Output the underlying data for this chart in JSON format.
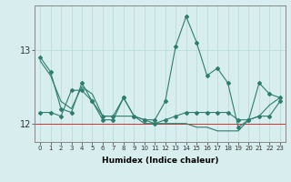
{
  "xlabel": "Humidex (Indice chaleur)",
  "x_values": [
    0,
    1,
    2,
    3,
    4,
    5,
    6,
    7,
    8,
    9,
    10,
    11,
    12,
    13,
    14,
    15,
    16,
    17,
    18,
    19,
    20,
    21,
    22,
    23
  ],
  "line1": [
    12.9,
    12.7,
    12.2,
    12.15,
    12.55,
    12.3,
    12.05,
    12.05,
    12.35,
    12.1,
    12.05,
    12.05,
    12.3,
    13.05,
    13.45,
    13.1,
    12.65,
    12.75,
    12.55,
    11.95,
    12.05,
    12.55,
    12.4,
    12.35
  ],
  "line2": [
    12.15,
    12.15,
    12.1,
    12.45,
    12.45,
    12.3,
    12.1,
    12.1,
    12.35,
    12.1,
    12.05,
    12.0,
    12.05,
    12.1,
    12.15,
    12.15,
    12.15,
    12.15,
    12.15,
    12.05,
    12.05,
    12.1,
    12.1,
    12.3
  ],
  "line_smooth": [
    12.85,
    12.65,
    12.3,
    12.2,
    12.5,
    12.4,
    12.1,
    12.1,
    12.1,
    12.1,
    12.0,
    12.0,
    12.0,
    12.0,
    12.0,
    11.95,
    11.95,
    11.9,
    11.9,
    11.9,
    12.05,
    12.1,
    12.25,
    12.35
  ],
  "bg_color": "#d8eeee",
  "line_color": "#2e7d6e",
  "grid_color": "#b8d8d8",
  "red_line_y": 12.0,
  "ylim": [
    11.75,
    13.6
  ],
  "yticks": [
    12,
    13
  ],
  "xticks": [
    0,
    1,
    2,
    3,
    4,
    5,
    6,
    7,
    8,
    9,
    10,
    11,
    12,
    13,
    14,
    15,
    16,
    17,
    18,
    19,
    20,
    21,
    22,
    23
  ]
}
